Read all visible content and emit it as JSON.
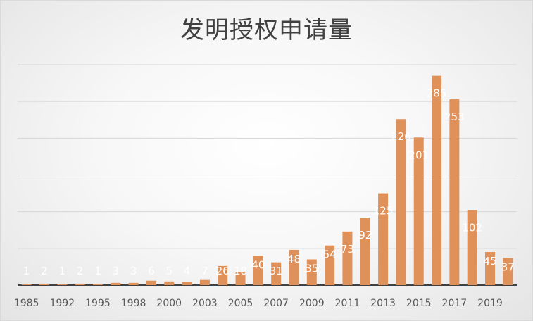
{
  "chart_data": {
    "type": "bar",
    "title": "发明授权申请量",
    "xlabel": "",
    "ylabel": "",
    "ylim": [
      0,
      300
    ],
    "grid": true,
    "bar_color": "#E0915A",
    "categories": [
      "1985",
      "1986",
      "1992",
      "1993",
      "1995",
      "1997",
      "1998",
      "1999",
      "2000",
      "2001",
      "2003",
      "2004",
      "2005",
      "2006",
      "2007",
      "2008",
      "2009",
      "2010",
      "2011",
      "2012",
      "2013",
      "2014",
      "2015",
      "2016",
      "2017",
      "2018",
      "2019",
      "2020"
    ],
    "values": [
      1,
      2,
      1,
      2,
      1,
      3,
      3,
      6,
      5,
      4,
      7,
      26,
      18,
      40,
      31,
      48,
      35,
      54,
      73,
      92,
      125,
      226,
      201,
      285,
      253,
      102,
      45,
      37
    ],
    "tick_labels_shown": [
      "1985",
      "1992",
      "1995",
      "1998",
      "2000",
      "2003",
      "2005",
      "2007",
      "2009",
      "2011",
      "2013",
      "2015",
      "2017",
      "2019"
    ]
  }
}
